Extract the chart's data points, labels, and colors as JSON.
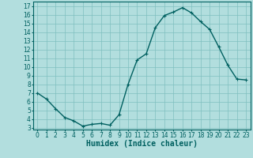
{
  "x": [
    0,
    1,
    2,
    3,
    4,
    5,
    6,
    7,
    8,
    9,
    10,
    11,
    12,
    13,
    14,
    15,
    16,
    17,
    18,
    19,
    20,
    21,
    22,
    23
  ],
  "y": [
    7.0,
    6.3,
    5.2,
    4.2,
    3.8,
    3.2,
    3.4,
    3.5,
    3.3,
    4.5,
    8.0,
    10.8,
    11.5,
    14.5,
    15.9,
    16.3,
    16.8,
    16.2,
    15.2,
    14.3,
    12.3,
    10.2,
    8.6,
    8.5
  ],
  "line_color": "#006060",
  "marker": "+",
  "markersize": 3,
  "linewidth": 1.0,
  "markeredgewidth": 0.8,
  "background_color": "#b2dede",
  "grid_color": "#7fbfbf",
  "xlabel": "Humidex (Indice chaleur)",
  "xlabel_fontsize": 7,
  "yticks": [
    3,
    4,
    5,
    6,
    7,
    8,
    9,
    10,
    11,
    12,
    13,
    14,
    15,
    16,
    17
  ],
  "xticks": [
    0,
    1,
    2,
    3,
    4,
    5,
    6,
    7,
    8,
    9,
    10,
    11,
    12,
    13,
    14,
    15,
    16,
    17,
    18,
    19,
    20,
    21,
    22,
    23
  ],
  "ylim": [
    2.8,
    17.5
  ],
  "xlim": [
    -0.5,
    23.5
  ],
  "tick_fontsize": 5.5
}
